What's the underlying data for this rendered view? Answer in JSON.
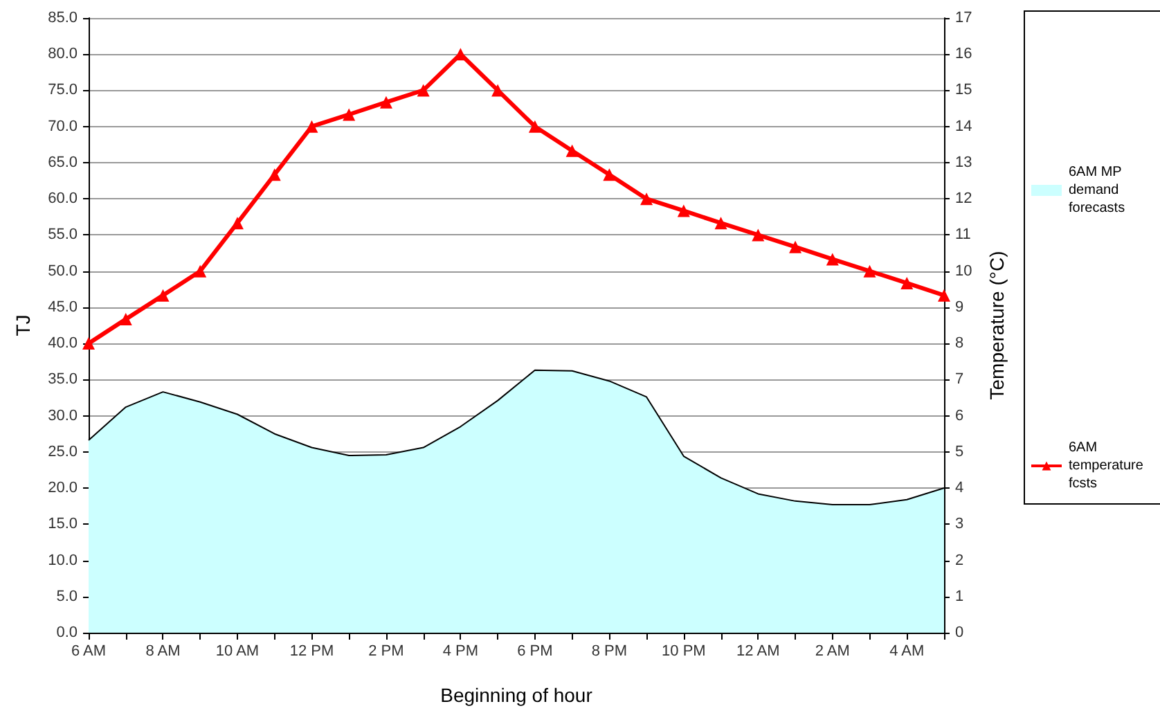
{
  "chart_data": {
    "type": "area",
    "xlabel": "Beginning of hour",
    "ylabel": "TJ",
    "y2label": "Temperature (°C)",
    "categories": [
      "6 AM",
      null,
      "8 AM",
      null,
      "10 AM",
      null,
      "12 PM",
      null,
      "2 PM",
      null,
      "4 PM",
      null,
      "6 PM",
      null,
      "8 PM",
      null,
      "10 PM",
      null,
      "12 AM",
      null,
      "2 AM",
      null,
      "4 AM",
      null
    ],
    "series": [
      {
        "name": "6AM MP demand forecasts",
        "color": "#ccffff",
        "values": [
          26.6,
          31.2,
          33.3,
          31.9,
          30.2,
          27.5,
          25.6,
          24.5,
          24.6,
          25.6,
          28.5,
          32.1,
          36.3,
          36.2,
          34.8,
          32.6,
          24.4,
          21.4,
          19.2,
          18.2,
          17.7,
          17.7,
          18.4,
          20.0
        ]
      },
      {
        "name": "6AM temperature fcsts",
        "type": "line",
        "axis": "y2",
        "color": "#ff0000",
        "marker": "triangle",
        "values": [
          8,
          8.67,
          9.33,
          10,
          11.33,
          12.67,
          14,
          14.33,
          14.67,
          15,
          16,
          15,
          14,
          13.33,
          12.67,
          12,
          11.67,
          11.33,
          11,
          10.67,
          10.33,
          10,
          9.67,
          9.33
        ]
      }
    ],
    "ylim": [
      0,
      85
    ],
    "yticks": [
      {
        "value": 0,
        "label": "0.0"
      },
      {
        "value": 5,
        "label": "5.0"
      },
      {
        "value": 10,
        "label": "10.0"
      },
      {
        "value": 15,
        "label": "15.0"
      },
      {
        "value": 20,
        "label": "20.0"
      },
      {
        "value": 25,
        "label": "25.0"
      },
      {
        "value": 30,
        "label": "30.0"
      },
      {
        "value": 35,
        "label": "35.0"
      },
      {
        "value": 40,
        "label": "40.0"
      },
      {
        "value": 45,
        "label": "45.0"
      },
      {
        "value": 50,
        "label": "50.0"
      },
      {
        "value": 55,
        "label": "55.0"
      },
      {
        "value": 60,
        "label": "60.0"
      },
      {
        "value": 65,
        "label": "65.0"
      },
      {
        "value": 70,
        "label": "70.0"
      },
      {
        "value": 75,
        "label": "75.0"
      },
      {
        "value": 80,
        "label": "80.0"
      },
      {
        "value": 85,
        "label": "85.0"
      }
    ],
    "y2lim": [
      0,
      17
    ],
    "y2ticks": [
      0,
      1,
      2,
      3,
      4,
      5,
      6,
      7,
      8,
      9,
      10,
      11,
      12,
      13,
      14,
      15,
      16,
      17
    ],
    "grid": "y",
    "legend": "right"
  }
}
